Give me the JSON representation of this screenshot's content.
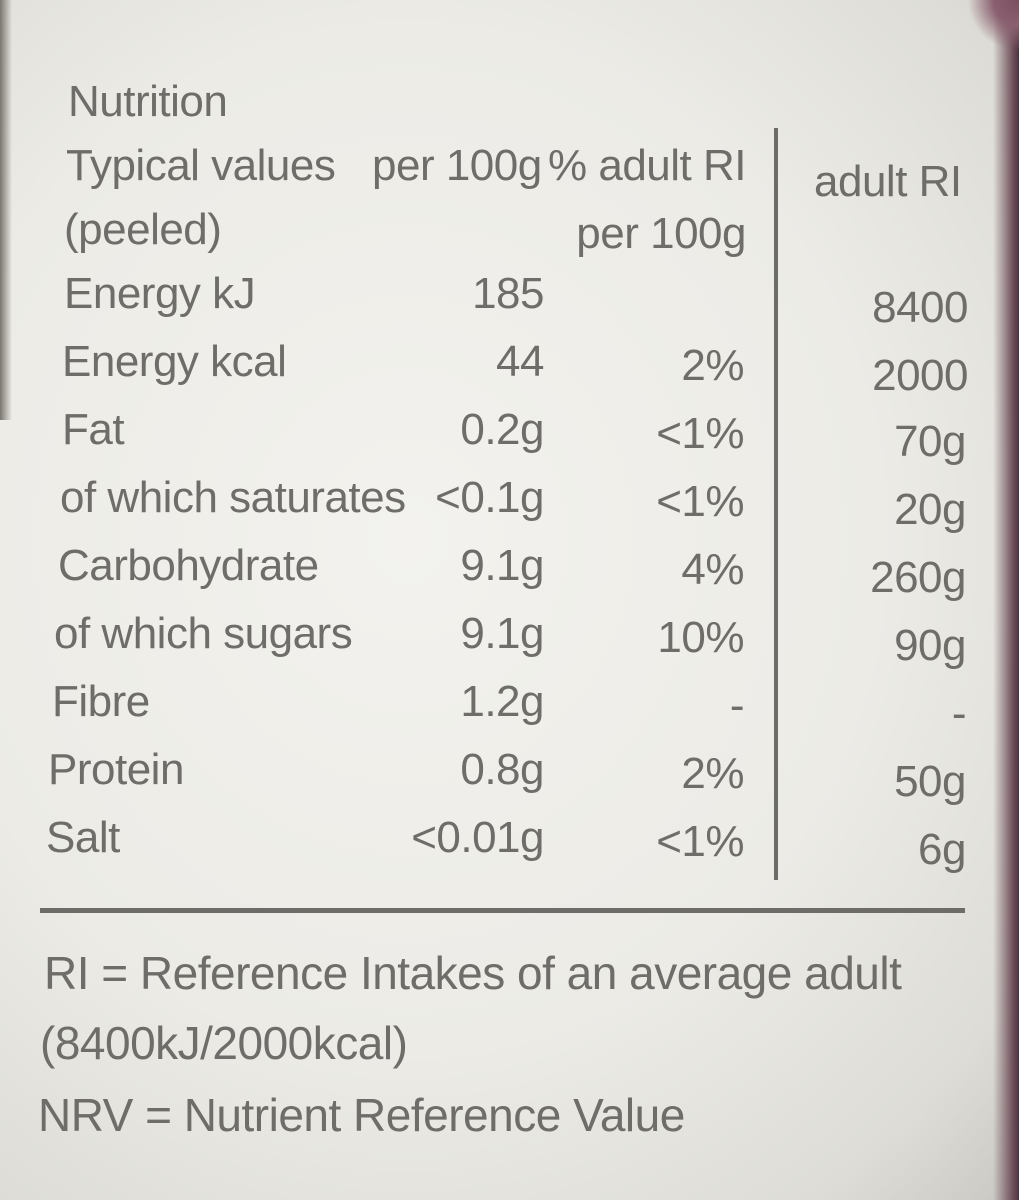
{
  "panel": {
    "title": "Nutrition",
    "header": {
      "col_label_line1": "Typical values",
      "col_label_line2": "(peeled)",
      "per100_label": "per 100g",
      "ri_label_line1": "% adult RI",
      "ri_label_line2": "per 100g",
      "adult_ri_label": "adult RI"
    },
    "rows": [
      {
        "name": "Energy kJ",
        "per100": "185",
        "ri_pct": "",
        "adult_ri": "8400"
      },
      {
        "name": "Energy kcal",
        "per100": "44",
        "ri_pct": "2%",
        "adult_ri": "2000"
      },
      {
        "name": "Fat",
        "per100": "0.2g",
        "ri_pct": "<1%",
        "adult_ri": "70g"
      },
      {
        "name": "of which saturates",
        "per100": "<0.1g",
        "ri_pct": "<1%",
        "adult_ri": "20g"
      },
      {
        "name": "Carbohydrate",
        "per100": "9.1g",
        "ri_pct": "4%",
        "adult_ri": "260g"
      },
      {
        "name": "of which sugars",
        "per100": "9.1g",
        "ri_pct": "10%",
        "adult_ri": "90g"
      },
      {
        "name": "Fibre",
        "per100": "1.2g",
        "ri_pct": "-",
        "adult_ri": "-"
      },
      {
        "name": "Protein",
        "per100": "0.8g",
        "ri_pct": "2%",
        "adult_ri": "50g"
      },
      {
        "name": "Salt",
        "per100": "<0.01g",
        "ri_pct": "<1%",
        "adult_ri": "6g"
      }
    ],
    "footnotes": {
      "ri_line1": "RI = Reference Intakes of an average adult",
      "ri_line2": "(8400kJ/2000kcal)",
      "nrv": "NRV = Nutrient Reference Value"
    }
  },
  "colors": {
    "ink": "#6f6d69",
    "paper": "#ecebe6",
    "background": "#4a4348"
  }
}
